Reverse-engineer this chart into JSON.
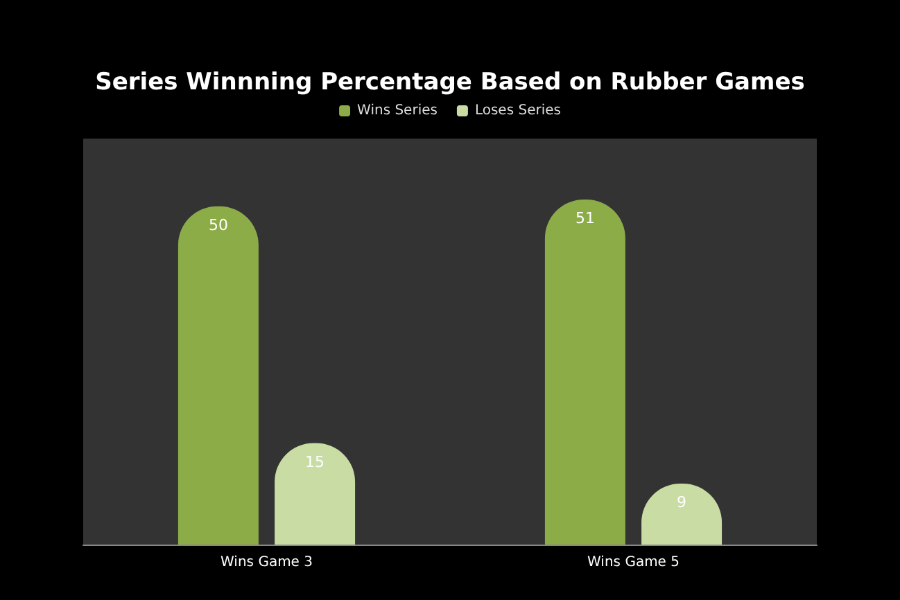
{
  "chart_data": {
    "type": "bar",
    "title": "Series Winnning Percentage Based on Rubber Games",
    "categories": [
      "Wins Game 3",
      "Wins Game 5"
    ],
    "series": [
      {
        "name": "Wins Series",
        "color": "#8cac48",
        "values": [
          50,
          51
        ]
      },
      {
        "name": "Loses Series",
        "color": "#c8dca4",
        "values": [
          15,
          9
        ]
      }
    ],
    "data_labels": true,
    "legend": "top",
    "grid": false,
    "ylim": [
      0,
      60
    ]
  }
}
